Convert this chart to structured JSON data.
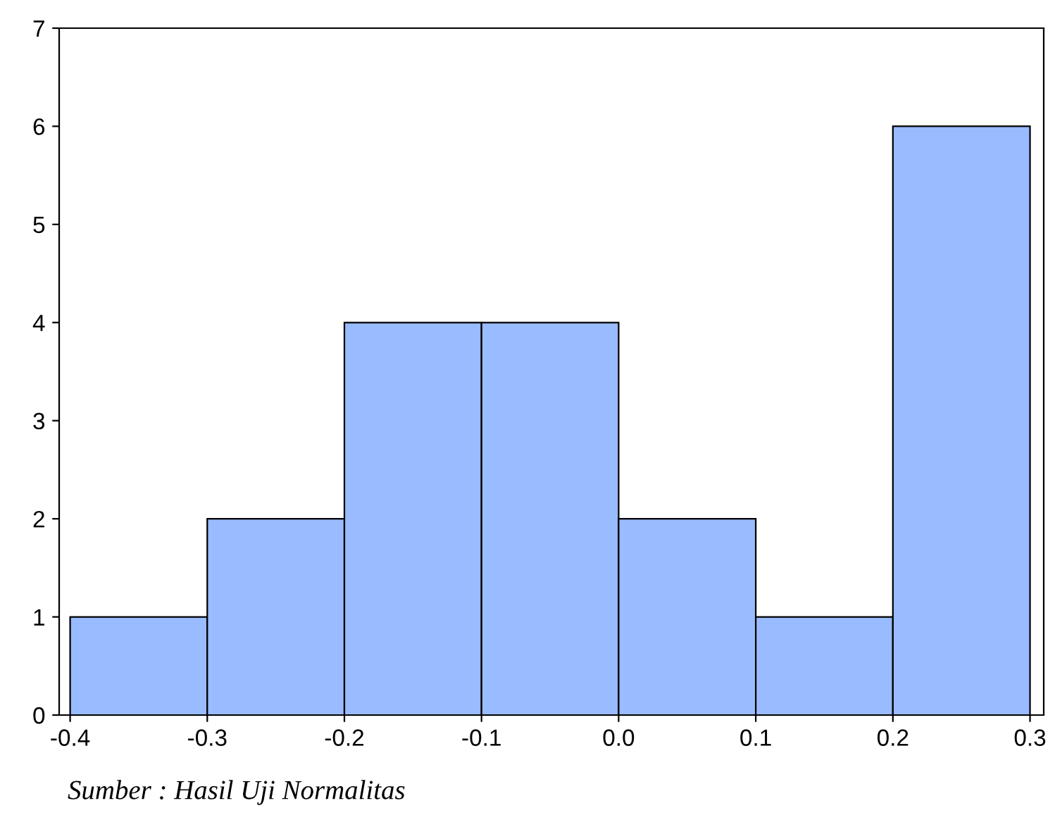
{
  "chart_data": {
    "type": "histogram",
    "bins": [
      -0.4,
      -0.3,
      -0.2,
      -0.1,
      0.0,
      0.1,
      0.2,
      0.3
    ],
    "values": [
      1,
      2,
      4,
      4,
      2,
      1,
      6
    ],
    "color": "#99bbff",
    "xlim": [
      -0.408,
      0.31
    ],
    "xticks": [
      {
        "value": -0.4,
        "label": "-0.4"
      },
      {
        "value": -0.3,
        "label": "-0.3"
      },
      {
        "value": -0.2,
        "label": "-0.2"
      },
      {
        "value": -0.1,
        "label": "-0.1"
      },
      {
        "value": 0.0,
        "label": "0.0"
      },
      {
        "value": 0.1,
        "label": "0.1"
      },
      {
        "value": 0.2,
        "label": "0.2"
      },
      {
        "value": 0.3,
        "label": "0.3"
      }
    ],
    "ylim": [
      0,
      7
    ],
    "yticks": [
      0,
      1,
      2,
      3,
      4,
      5,
      6,
      7
    ],
    "grid": false,
    "annotations": [
      "Sumber : Hasil Uji Normalitas"
    ]
  }
}
